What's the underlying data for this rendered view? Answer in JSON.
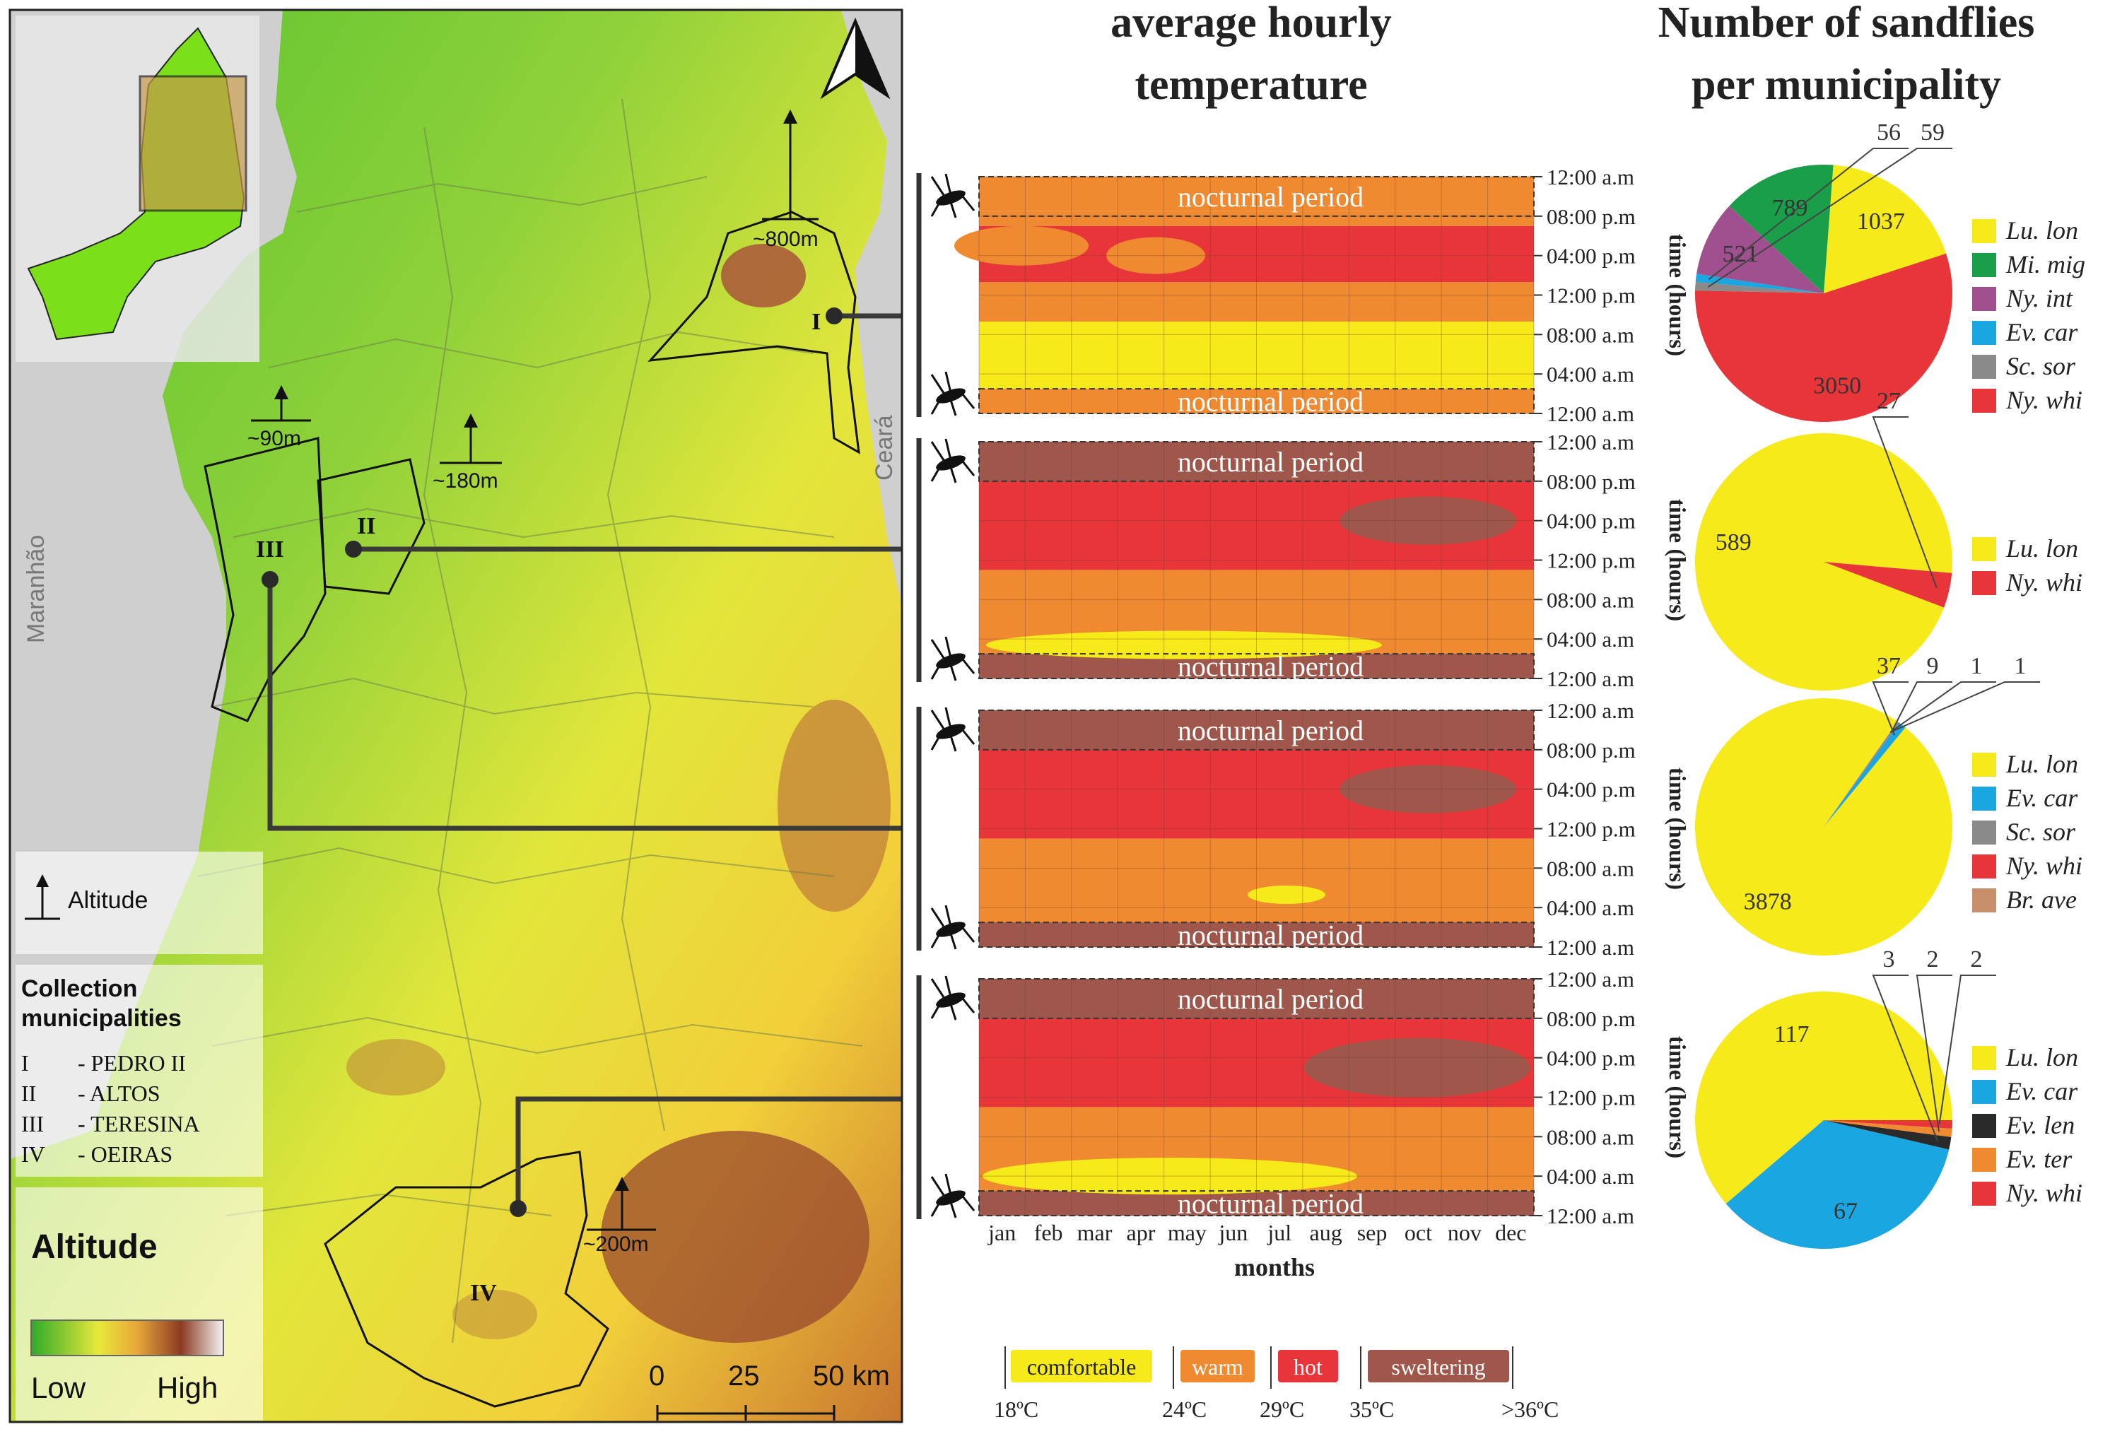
{
  "map": {
    "states": [
      "Maranhão",
      "Ceará"
    ],
    "altitude_marks": [
      "~800m",
      "~90m",
      "~180m",
      "~200m"
    ],
    "municipality_markers": [
      "I",
      "II",
      "III",
      "IV"
    ],
    "legend": {
      "altitude_symbol_label": "Altitude",
      "collection_title_1": "Collection",
      "collection_title_2": "municipalities",
      "municipalities": [
        {
          "code": "I",
          "name": "- PEDRO II"
        },
        {
          "code": "II",
          "name": "- ALTOS"
        },
        {
          "code": "III",
          "name": "- TERESINA"
        },
        {
          "code": "IV",
          "name": "- OEIRAS"
        }
      ],
      "altitude_title": "Altitude",
      "low": "Low",
      "high": "High"
    },
    "scale": {
      "ticks": [
        "0",
        "25",
        "50 km"
      ]
    },
    "colors": {
      "low": "#3fbf2a",
      "mid": "#f4ef3a",
      "high": "#8c3a22"
    }
  },
  "chart_data": [
    {
      "type": "heatmap",
      "title_line1": "average hourly",
      "title_line2": "temperature",
      "months": [
        "jan",
        "feb",
        "mar",
        "apr",
        "may",
        "jun",
        "jul",
        "aug",
        "sep",
        "oct",
        "nov",
        "dec"
      ],
      "time_ticks": [
        "12:00 a.m",
        "08:00 p.m",
        "04:00 p.m",
        "12:00 p.m",
        "08:00 a.m",
        "04:00 a.m",
        "12:00 a.m"
      ],
      "ylabel": "time (hours)",
      "xlabel": "months",
      "annotation": "nocturnal period",
      "classes": [
        {
          "label": "comfortable",
          "color": "#f7ea1a"
        },
        {
          "label": "warm",
          "color": "#f08a30"
        },
        {
          "label": "hot",
          "color": "#e8353a"
        },
        {
          "label": "sweltering",
          "color": "#a0574b"
        }
      ],
      "thresholds": [
        "18ºC",
        "24ºC",
        "29ºC",
        "35ºC",
        ">36ºC"
      ],
      "panels": [
        {
          "municipality": "I",
          "bands": [
            {
              "class": "warm",
              "from": 20.5,
              "to": 24
            },
            {
              "class": "warm",
              "from": 19,
              "to": 20.5
            },
            {
              "class": "hot",
              "from": 13.3,
              "to": 19
            },
            {
              "class": "warm",
              "from": 9.3,
              "to": 13.3
            },
            {
              "class": "comfortable",
              "from": 2.5,
              "to": 9.3
            },
            {
              "class": "warm",
              "from": 0,
              "to": 2.5
            }
          ]
        },
        {
          "municipality": "II",
          "bands": [
            {
              "class": "sweltering",
              "from": 20,
              "to": 24
            },
            {
              "class": "hot",
              "from": 11,
              "to": 20
            },
            {
              "class": "warm",
              "from": 2.5,
              "to": 11
            },
            {
              "class": "sweltering",
              "from": 0,
              "to": 2.5
            }
          ]
        },
        {
          "municipality": "III",
          "bands": [
            {
              "class": "sweltering",
              "from": 20,
              "to": 24
            },
            {
              "class": "hot",
              "from": 11,
              "to": 20
            },
            {
              "class": "warm",
              "from": 2.5,
              "to": 11
            },
            {
              "class": "sweltering",
              "from": 0,
              "to": 2.5
            }
          ]
        },
        {
          "municipality": "IV",
          "bands": [
            {
              "class": "sweltering",
              "from": 20,
              "to": 24
            },
            {
              "class": "hot",
              "from": 11,
              "to": 20
            },
            {
              "class": "warm",
              "from": 2.5,
              "to": 11
            },
            {
              "class": "sweltering",
              "from": 0,
              "to": 2.5
            }
          ]
        }
      ]
    },
    {
      "type": "pie",
      "title_line1": "Number of sandflies",
      "title_line2": "per municipality",
      "pies": [
        {
          "municipality": "I",
          "slices": [
            {
              "label": "Lu. lon",
              "value": 1037,
              "color": "#f7ea1a"
            },
            {
              "label": "Mi. mig",
              "value": 789,
              "color": "#1b9e4a"
            },
            {
              "label": "Ny. int",
              "value": 521,
              "color": "#a0508f"
            },
            {
              "label": "Ev. car",
              "value": 56,
              "color": "#1aa6e0"
            },
            {
              "label": "Sc. sor",
              "value": 59,
              "color": "#8a8a8a"
            },
            {
              "label": "Ny. whi",
              "value": 3050,
              "color": "#e8353a"
            }
          ]
        },
        {
          "municipality": "II",
          "slices": [
            {
              "label": "Lu. lon",
              "value": 589,
              "color": "#f7ea1a"
            },
            {
              "label": "Ny. whi",
              "value": 27,
              "color": "#e8353a"
            }
          ]
        },
        {
          "municipality": "III",
          "slices": [
            {
              "label": "Lu. lon",
              "value": 3878,
              "color": "#f7ea1a"
            },
            {
              "label": "Ev. car",
              "value": 37,
              "color": "#1aa6e0"
            },
            {
              "label": "Sc. sor",
              "value": 9,
              "color": "#8a8a8a"
            },
            {
              "label": "Ny. whi",
              "value": 1,
              "color": "#e8353a"
            },
            {
              "label": "Br. ave",
              "value": 1,
              "color": "#c8906a"
            }
          ]
        },
        {
          "municipality": "IV",
          "slices": [
            {
              "label": "Lu. lon",
              "value": 117,
              "color": "#f7ea1a"
            },
            {
              "label": "Ev. car",
              "value": 67,
              "color": "#1aa6e0"
            },
            {
              "label": "Ev. len",
              "value": 3,
              "color": "#2a2a2a"
            },
            {
              "label": "Ev. ter",
              "value": 2,
              "color": "#f08a30"
            },
            {
              "label": "Ny. whi",
              "value": 2,
              "color": "#e8353a"
            }
          ]
        }
      ]
    }
  ]
}
